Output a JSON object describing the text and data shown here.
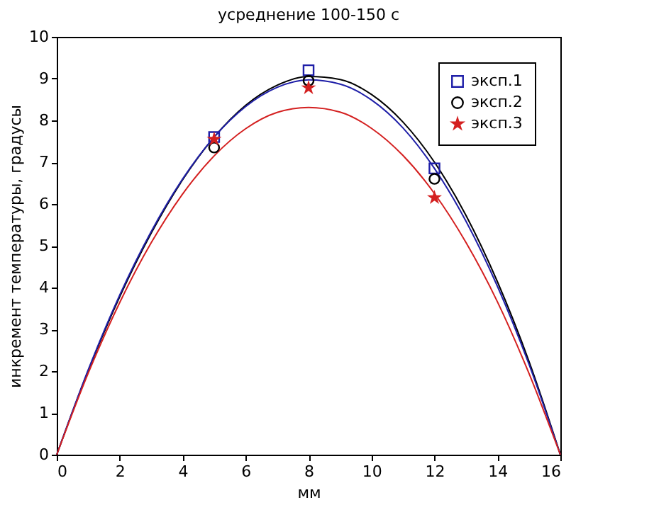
{
  "chart_data": {
    "type": "scatter",
    "title": "усреднение 100-150 с",
    "xlabel": "мм",
    "ylabel": "инкремент температуры, градусы",
    "xlim": [
      0,
      16
    ],
    "ylim": [
      0,
      10
    ],
    "xticks": [
      0,
      2,
      4,
      6,
      8,
      10,
      12,
      14,
      16
    ],
    "yticks": [
      0,
      1,
      2,
      3,
      4,
      5,
      6,
      7,
      8,
      9,
      10
    ],
    "grid": false,
    "legend": "top right",
    "series": [
      {
        "name": "эксп.1",
        "marker": "square",
        "color": "#1f1fa8",
        "x": [
          5,
          8,
          12
        ],
        "values": [
          7.6,
          9.2,
          6.85
        ]
      },
      {
        "name": "эксп.2",
        "marker": "circle",
        "color": "#000000",
        "x": [
          5,
          8,
          12
        ],
        "values": [
          7.35,
          8.95,
          6.6
        ]
      },
      {
        "name": "эксп.3",
        "marker": "star",
        "color": "#d42020",
        "x": [
          5,
          8,
          12
        ],
        "values": [
          7.55,
          8.78,
          6.15
        ]
      },
      {
        "type": "line",
        "line_style": "solid",
        "color": "#000000",
        "x": [
          0,
          1,
          2,
          3,
          4,
          5,
          6,
          7,
          8,
          9,
          10,
          11,
          12,
          13,
          14,
          15,
          16
        ],
        "values": [
          0,
          2.01,
          3.78,
          5.3,
          6.58,
          7.6,
          8.36,
          8.84,
          9.05,
          8.98,
          8.62,
          7.96,
          7.0,
          5.73,
          4.14,
          2.24,
          0
        ]
      },
      {
        "type": "line",
        "line_style": "solid",
        "color": "#1f1fa8",
        "x": [
          0,
          1,
          2,
          3,
          4,
          5,
          6,
          7,
          8,
          9,
          10,
          11,
          12,
          13,
          14,
          15,
          16
        ],
        "values": [
          0,
          2.03,
          3.82,
          5.34,
          6.6,
          7.6,
          8.33,
          8.79,
          8.97,
          8.87,
          8.49,
          7.82,
          6.85,
          5.59,
          4.03,
          2.17,
          0
        ]
      },
      {
        "type": "line",
        "line_style": "solid",
        "color": "#d42020",
        "x": [
          0,
          1,
          2,
          3,
          4,
          5,
          6,
          7,
          8,
          9,
          10,
          11,
          12,
          13,
          14,
          15,
          16
        ],
        "values": [
          0,
          1.95,
          3.64,
          5.07,
          6.24,
          7.15,
          7.8,
          8.19,
          8.31,
          8.2,
          7.81,
          7.16,
          6.25,
          5.08,
          3.66,
          1.95,
          0
        ]
      }
    ]
  }
}
